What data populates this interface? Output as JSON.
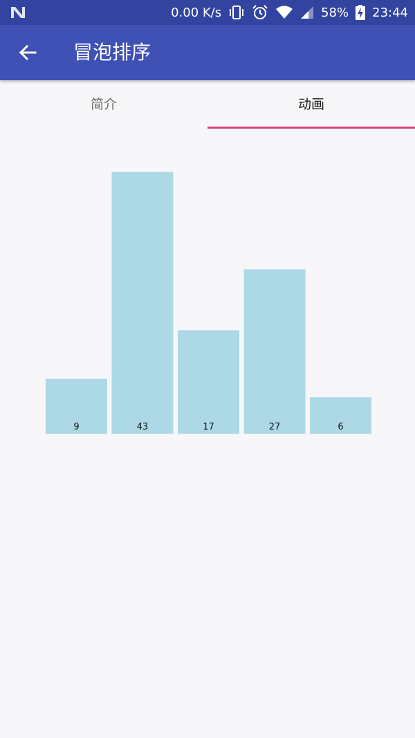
{
  "status_bar": {
    "speed": "0.00 K/s",
    "battery": "58%",
    "time": "23:44",
    "icons": [
      "android-n-icon",
      "vibrate-icon",
      "alarm-icon",
      "wifi-icon",
      "cell-signal-icon",
      "battery-charging-icon"
    ]
  },
  "app_bar": {
    "title": "冒泡排序",
    "back_icon": "arrow-back-icon",
    "color": "#3f51b5"
  },
  "tabs": [
    {
      "label": "简介",
      "selected": false
    },
    {
      "label": "动画",
      "selected": true
    }
  ],
  "tab_indicator_color": "#d84377",
  "chart_data": {
    "type": "bar",
    "values": [
      9,
      43,
      17,
      27,
      6
    ],
    "bar_color": "#add8e6"
  }
}
